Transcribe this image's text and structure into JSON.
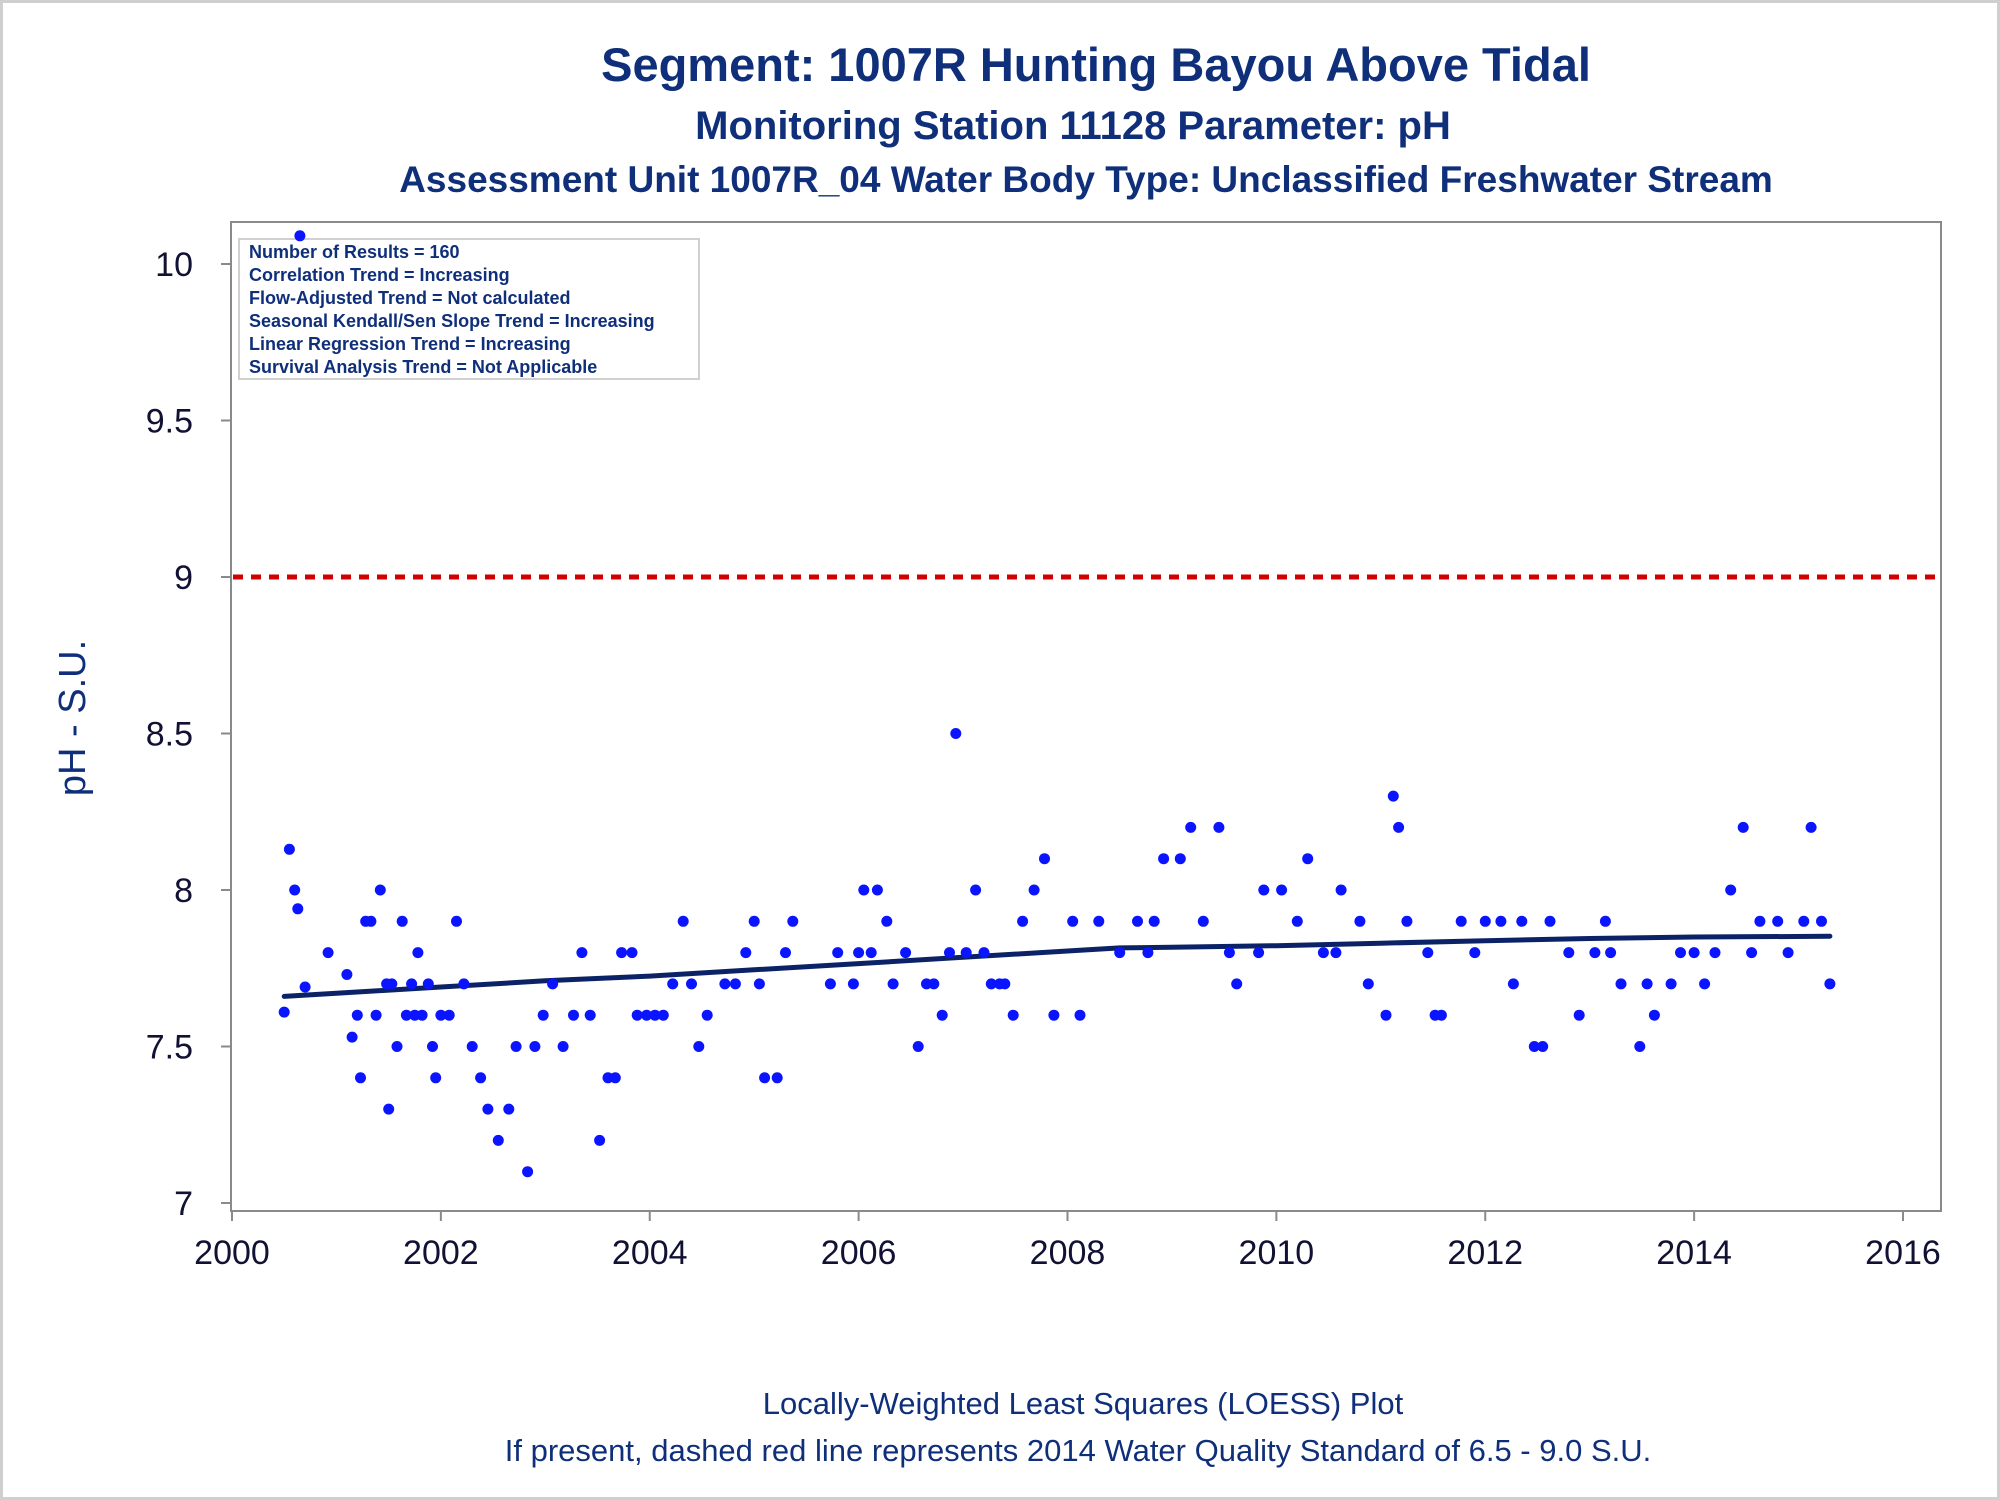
{
  "titles": {
    "line1": "Segment: 1007R  Hunting Bayou Above Tidal",
    "line2": "Monitoring Station 11128 Parameter: pH",
    "line3": "Assessment Unit 1007R_04   Water Body Type: Unclassified Freshwater Stream"
  },
  "footer": {
    "line1": "Locally-Weighted Least Squares (LOESS) Plot",
    "line2": "If present, dashed red line represents 2014 Water Quality Standard of 6.5 - 9.0 S.U."
  },
  "stats_box": [
    "Number of Results = 160",
    "Correlation Trend = Increasing",
    "Flow-Adjusted Trend = Not calculated",
    "Seasonal Kendall/Sen Slope Trend = Increasing",
    "Linear Regression Trend = Increasing",
    "Survival Analysis Trend = Not Applicable"
  ],
  "colors": {
    "title": "#0f2f7a",
    "points": "#0a14ff",
    "loess": "#0b2366",
    "standard_line": "#d00000",
    "frame": "#8a8a8a"
  },
  "chart_data": {
    "type": "scatter",
    "xlabel": "",
    "ylabel": "pH - S.U.",
    "xlim": [
      2000,
      2016
    ],
    "ylim": [
      7,
      10.1
    ],
    "x_ticks": [
      2000,
      2002,
      2004,
      2006,
      2008,
      2010,
      2012,
      2014,
      2016
    ],
    "y_ticks": [
      7,
      7.5,
      8,
      8.5,
      9,
      9.5,
      10
    ],
    "y_tick_labels": [
      "7",
      "7.5",
      "8",
      "8.5",
      "9",
      "9.5",
      "10"
    ],
    "grid": false,
    "reference_line": {
      "y": 9.0,
      "style": "dashed"
    },
    "series": [
      {
        "type": "scatter",
        "points": [
          [
            2000.5,
            7.61
          ],
          [
            2000.55,
            8.13
          ],
          [
            2000.6,
            8.0
          ],
          [
            2000.63,
            7.94
          ],
          [
            2000.65,
            10.09
          ],
          [
            2000.7,
            7.69
          ],
          [
            2000.92,
            7.8
          ],
          [
            2001.1,
            7.73
          ],
          [
            2001.15,
            7.53
          ],
          [
            2001.2,
            7.6
          ],
          [
            2001.23,
            7.4
          ],
          [
            2001.28,
            7.9
          ],
          [
            2001.33,
            7.9
          ],
          [
            2001.38,
            7.6
          ],
          [
            2001.42,
            8.0
          ],
          [
            2001.48,
            7.7
          ],
          [
            2001.5,
            7.3
          ],
          [
            2001.53,
            7.7
          ],
          [
            2001.58,
            7.5
          ],
          [
            2001.63,
            7.9
          ],
          [
            2001.67,
            7.6
          ],
          [
            2001.72,
            7.7
          ],
          [
            2001.75,
            7.6
          ],
          [
            2001.78,
            7.8
          ],
          [
            2001.82,
            7.6
          ],
          [
            2001.88,
            7.7
          ],
          [
            2001.92,
            7.5
          ],
          [
            2001.95,
            7.4
          ],
          [
            2002.0,
            7.6
          ],
          [
            2002.08,
            7.6
          ],
          [
            2002.15,
            7.9
          ],
          [
            2002.22,
            7.7
          ],
          [
            2002.3,
            7.5
          ],
          [
            2002.38,
            7.4
          ],
          [
            2002.45,
            7.3
          ],
          [
            2002.55,
            7.2
          ],
          [
            2002.65,
            7.3
          ],
          [
            2002.72,
            7.5
          ],
          [
            2002.83,
            7.1
          ],
          [
            2002.9,
            7.5
          ],
          [
            2002.98,
            7.6
          ],
          [
            2003.07,
            7.7
          ],
          [
            2003.17,
            7.5
          ],
          [
            2003.27,
            7.6
          ],
          [
            2003.35,
            7.8
          ],
          [
            2003.43,
            7.6
          ],
          [
            2003.52,
            7.2
          ],
          [
            2003.6,
            7.4
          ],
          [
            2003.67,
            7.4
          ],
          [
            2003.73,
            7.8
          ],
          [
            2003.83,
            7.8
          ],
          [
            2003.88,
            7.6
          ],
          [
            2003.97,
            7.6
          ],
          [
            2004.05,
            7.6
          ],
          [
            2004.13,
            7.6
          ],
          [
            2004.22,
            7.7
          ],
          [
            2004.32,
            7.9
          ],
          [
            2004.4,
            7.7
          ],
          [
            2004.47,
            7.5
          ],
          [
            2004.55,
            7.6
          ],
          [
            2004.72,
            7.7
          ],
          [
            2004.82,
            7.7
          ],
          [
            2004.92,
            7.8
          ],
          [
            2005.0,
            7.9
          ],
          [
            2005.05,
            7.7
          ],
          [
            2005.1,
            7.4
          ],
          [
            2005.22,
            7.4
          ],
          [
            2005.3,
            7.8
          ],
          [
            2005.37,
            7.9
          ],
          [
            2005.73,
            7.7
          ],
          [
            2005.8,
            7.8
          ],
          [
            2005.95,
            7.7
          ],
          [
            2006.0,
            7.8
          ],
          [
            2006.05,
            8.0
          ],
          [
            2006.12,
            7.8
          ],
          [
            2006.18,
            8.0
          ],
          [
            2006.27,
            7.9
          ],
          [
            2006.33,
            7.7
          ],
          [
            2006.45,
            7.8
          ],
          [
            2006.57,
            7.5
          ],
          [
            2006.65,
            7.7
          ],
          [
            2006.72,
            7.7
          ],
          [
            2006.8,
            7.6
          ],
          [
            2006.87,
            7.8
          ],
          [
            2006.93,
            8.5
          ],
          [
            2007.03,
            7.8
          ],
          [
            2007.12,
            8.0
          ],
          [
            2007.2,
            7.8
          ],
          [
            2007.27,
            7.7
          ],
          [
            2007.35,
            7.7
          ],
          [
            2007.4,
            7.7
          ],
          [
            2007.48,
            7.6
          ],
          [
            2007.57,
            7.9
          ],
          [
            2007.68,
            8.0
          ],
          [
            2007.78,
            8.1
          ],
          [
            2007.87,
            7.6
          ],
          [
            2008.05,
            7.9
          ],
          [
            2008.12,
            7.6
          ],
          [
            2008.3,
            7.9
          ],
          [
            2008.5,
            7.8
          ],
          [
            2008.67,
            7.9
          ],
          [
            2008.77,
            7.8
          ],
          [
            2008.83,
            7.9
          ],
          [
            2008.92,
            8.1
          ],
          [
            2009.08,
            8.1
          ],
          [
            2009.18,
            8.2
          ],
          [
            2009.3,
            7.9
          ],
          [
            2009.45,
            8.2
          ],
          [
            2009.55,
            7.8
          ],
          [
            2009.62,
            7.7
          ],
          [
            2009.83,
            7.8
          ],
          [
            2009.88,
            8.0
          ],
          [
            2010.05,
            8.0
          ],
          [
            2010.2,
            7.9
          ],
          [
            2010.3,
            8.1
          ],
          [
            2010.45,
            7.8
          ],
          [
            2010.57,
            7.8
          ],
          [
            2010.62,
            8.0
          ],
          [
            2010.8,
            7.9
          ],
          [
            2010.88,
            7.7
          ],
          [
            2011.05,
            7.6
          ],
          [
            2011.12,
            8.3
          ],
          [
            2011.17,
            8.2
          ],
          [
            2011.25,
            7.9
          ],
          [
            2011.45,
            7.8
          ],
          [
            2011.52,
            7.6
          ],
          [
            2011.58,
            7.6
          ],
          [
            2011.77,
            7.9
          ],
          [
            2011.9,
            7.8
          ],
          [
            2012.0,
            7.9
          ],
          [
            2012.15,
            7.9
          ],
          [
            2012.27,
            7.7
          ],
          [
            2012.35,
            7.9
          ],
          [
            2012.47,
            7.5
          ],
          [
            2012.55,
            7.5
          ],
          [
            2012.62,
            7.9
          ],
          [
            2012.8,
            7.8
          ],
          [
            2012.9,
            7.6
          ],
          [
            2013.05,
            7.8
          ],
          [
            2013.15,
            7.9
          ],
          [
            2013.2,
            7.8
          ],
          [
            2013.3,
            7.7
          ],
          [
            2013.48,
            7.5
          ],
          [
            2013.55,
            7.7
          ],
          [
            2013.62,
            7.6
          ],
          [
            2013.78,
            7.7
          ],
          [
            2013.87,
            7.8
          ],
          [
            2014.0,
            7.8
          ],
          [
            2014.1,
            7.7
          ],
          [
            2014.2,
            7.8
          ],
          [
            2014.35,
            8.0
          ],
          [
            2014.47,
            8.2
          ],
          [
            2014.55,
            7.8
          ],
          [
            2014.63,
            7.9
          ],
          [
            2014.8,
            7.9
          ],
          [
            2014.9,
            7.8
          ],
          [
            2015.05,
            7.9
          ],
          [
            2015.12,
            8.2
          ],
          [
            2015.22,
            7.9
          ],
          [
            2015.3,
            7.7
          ]
        ]
      },
      {
        "type": "line",
        "points": [
          [
            2000.5,
            7.66
          ],
          [
            2001.0,
            7.67
          ],
          [
            2002.0,
            7.69
          ],
          [
            2003.0,
            7.71
          ],
          [
            2004.0,
            7.725
          ],
          [
            2005.0,
            7.745
          ],
          [
            2006.0,
            7.765
          ],
          [
            2007.0,
            7.785
          ],
          [
            2008.0,
            7.805
          ],
          [
            2008.5,
            7.815
          ],
          [
            2009.0,
            7.817
          ],
          [
            2010.0,
            7.822
          ],
          [
            2011.0,
            7.83
          ],
          [
            2012.0,
            7.838
          ],
          [
            2013.0,
            7.845
          ],
          [
            2014.0,
            7.85
          ],
          [
            2015.3,
            7.852
          ]
        ]
      }
    ]
  }
}
